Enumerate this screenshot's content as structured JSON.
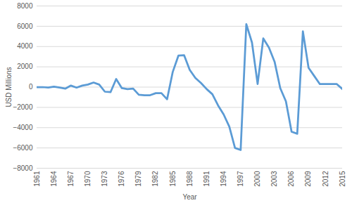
{
  "chart_data": {
    "type": "line",
    "x_label": "Year",
    "y_label": "USD Millions",
    "x": [
      1961,
      1962,
      1963,
      1964,
      1965,
      1966,
      1967,
      1968,
      1969,
      1970,
      1971,
      1972,
      1973,
      1974,
      1975,
      1976,
      1977,
      1978,
      1979,
      1980,
      1981,
      1982,
      1983,
      1984,
      1985,
      1986,
      1987,
      1988,
      1989,
      1990,
      1991,
      1992,
      1993,
      1994,
      1995,
      1996,
      1997,
      1998,
      1999,
      2000,
      2001,
      2002,
      2003,
      2004,
      2005,
      2006,
      2007,
      2008,
      2009,
      2010,
      2011,
      2012,
      2013,
      2014,
      2015
    ],
    "values": [
      0,
      0,
      -50,
      50,
      -50,
      -150,
      150,
      -50,
      150,
      250,
      450,
      250,
      -450,
      -500,
      800,
      -100,
      -200,
      -150,
      -750,
      -800,
      -800,
      -600,
      -600,
      -1200,
      1500,
      3100,
      3150,
      1700,
      900,
      400,
      -200,
      -700,
      -1800,
      -2700,
      -3900,
      -6000,
      -6200,
      6200,
      4400,
      300,
      4800,
      3900,
      2500,
      -100,
      -1400,
      -4400,
      -4600,
      5500,
      1900,
      1100,
      300,
      300,
      300,
      300,
      -200
    ],
    "color": "#5b9bd5",
    "xlim": [
      1961,
      2015
    ],
    "xticks": [
      1961,
      1964,
      1967,
      1970,
      1973,
      1976,
      1979,
      1982,
      1985,
      1988,
      1991,
      1994,
      1997,
      2000,
      2003,
      2006,
      2009,
      2012,
      2015
    ],
    "ylim": [
      -8000,
      8000
    ],
    "yticks": [
      -8000,
      -6000,
      -4000,
      -2000,
      0,
      2000,
      4000,
      6000,
      8000
    ],
    "grid": true
  }
}
